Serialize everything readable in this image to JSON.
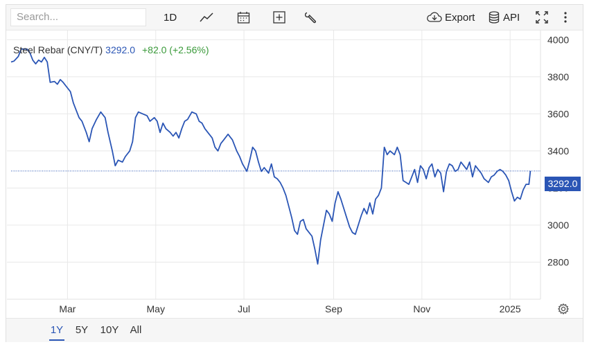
{
  "toolbar": {
    "search_placeholder": "Search...",
    "interval_label": "1D",
    "export_label": "Export",
    "api_label": "API",
    "icons": [
      "line-chart-icon",
      "calendar-icon",
      "plus-box-icon",
      "wrench-icon",
      "cloud-download-icon",
      "database-icon",
      "fullscreen-icon",
      "more-vertical-icon"
    ]
  },
  "legend": {
    "name": "Steel Rebar (CNY/T)",
    "price": "3292.0",
    "change": "+82.0 (+2.56%)"
  },
  "last_price_label": "3292.0",
  "ranges": [
    {
      "label": "1Y",
      "active": true
    },
    {
      "label": "5Y",
      "active": false
    },
    {
      "label": "10Y",
      "active": false
    },
    {
      "label": "All",
      "active": false
    }
  ],
  "colors": {
    "series": "#2a55b5",
    "change_positive": "#3a9a3a",
    "grid": "#e8e8e8"
  },
  "chart_data": {
    "type": "line",
    "title": "",
    "xlabel": "",
    "ylabel": "",
    "ylim": [
      2600,
      4050
    ],
    "y_ticks": [
      2800,
      3000,
      3200,
      3400,
      3600,
      3800,
      4000
    ],
    "x_tick_labels": [
      {
        "label": "Mar",
        "date": "2024-03-01"
      },
      {
        "label": "May",
        "date": "2024-05-01"
      },
      {
        "label": "Jul",
        "date": "2024-07-01"
      },
      {
        "label": "Sep",
        "date": "2024-09-01"
      },
      {
        "label": "Nov",
        "date": "2024-11-01"
      },
      {
        "label": "2025",
        "date": "2025-01-01"
      }
    ],
    "x_range": [
      "2024-01-22",
      "2025-01-22"
    ],
    "grid": true,
    "last_value": 3292.0,
    "series": [
      {
        "name": "Steel Rebar (CNY/T)",
        "points": [
          [
            "2024-01-22",
            3880
          ],
          [
            "2024-01-24",
            3885
          ],
          [
            "2024-01-27",
            3910
          ],
          [
            "2024-01-29",
            3950
          ],
          [
            "2024-02-02",
            3950
          ],
          [
            "2024-02-04",
            3930
          ],
          [
            "2024-02-06",
            3890
          ],
          [
            "2024-02-08",
            3870
          ],
          [
            "2024-02-10",
            3890
          ],
          [
            "2024-02-12",
            3880
          ],
          [
            "2024-02-14",
            3905
          ],
          [
            "2024-02-16",
            3880
          ],
          [
            "2024-02-18",
            3770
          ],
          [
            "2024-02-21",
            3775
          ],
          [
            "2024-02-23",
            3760
          ],
          [
            "2024-02-25",
            3785
          ],
          [
            "2024-02-27",
            3770
          ],
          [
            "2024-03-01",
            3740
          ],
          [
            "2024-03-03",
            3720
          ],
          [
            "2024-03-05",
            3660
          ],
          [
            "2024-03-07",
            3620
          ],
          [
            "2024-03-09",
            3580
          ],
          [
            "2024-03-11",
            3560
          ],
          [
            "2024-03-14",
            3500
          ],
          [
            "2024-03-16",
            3450
          ],
          [
            "2024-03-18",
            3520
          ],
          [
            "2024-03-21",
            3570
          ],
          [
            "2024-03-24",
            3610
          ],
          [
            "2024-03-27",
            3580
          ],
          [
            "2024-03-29",
            3500
          ],
          [
            "2024-04-01",
            3400
          ],
          [
            "2024-04-03",
            3320
          ],
          [
            "2024-04-05",
            3350
          ],
          [
            "2024-04-08",
            3340
          ],
          [
            "2024-04-10",
            3370
          ],
          [
            "2024-04-13",
            3400
          ],
          [
            "2024-04-15",
            3450
          ],
          [
            "2024-04-17",
            3580
          ],
          [
            "2024-04-19",
            3610
          ],
          [
            "2024-04-22",
            3600
          ],
          [
            "2024-04-25",
            3590
          ],
          [
            "2024-04-27",
            3560
          ],
          [
            "2024-04-30",
            3580
          ],
          [
            "2024-05-02",
            3560
          ],
          [
            "2024-05-04",
            3500
          ],
          [
            "2024-05-06",
            3550
          ],
          [
            "2024-05-08",
            3520
          ],
          [
            "2024-05-11",
            3500
          ],
          [
            "2024-05-13",
            3480
          ],
          [
            "2024-05-15",
            3500
          ],
          [
            "2024-05-17",
            3470
          ],
          [
            "2024-05-19",
            3520
          ],
          [
            "2024-05-21",
            3560
          ],
          [
            "2024-05-23",
            3570
          ],
          [
            "2024-05-26",
            3610
          ],
          [
            "2024-05-29",
            3600
          ],
          [
            "2024-05-31",
            3560
          ],
          [
            "2024-06-02",
            3550
          ],
          [
            "2024-06-04",
            3520
          ],
          [
            "2024-06-06",
            3500
          ],
          [
            "2024-06-09",
            3470
          ],
          [
            "2024-06-11",
            3420
          ],
          [
            "2024-06-13",
            3400
          ],
          [
            "2024-06-15",
            3440
          ],
          [
            "2024-06-17",
            3460
          ],
          [
            "2024-06-20",
            3490
          ],
          [
            "2024-06-23",
            3460
          ],
          [
            "2024-06-26",
            3400
          ],
          [
            "2024-06-28",
            3370
          ],
          [
            "2024-06-30",
            3330
          ],
          [
            "2024-07-03",
            3290
          ],
          [
            "2024-07-05",
            3350
          ],
          [
            "2024-07-07",
            3420
          ],
          [
            "2024-07-09",
            3400
          ],
          [
            "2024-07-11",
            3340
          ],
          [
            "2024-07-13",
            3290
          ],
          [
            "2024-07-15",
            3310
          ],
          [
            "2024-07-18",
            3280
          ],
          [
            "2024-07-20",
            3330
          ],
          [
            "2024-07-22",
            3260
          ],
          [
            "2024-07-24",
            3250
          ],
          [
            "2024-07-26",
            3230
          ],
          [
            "2024-07-28",
            3200
          ],
          [
            "2024-07-30",
            3160
          ],
          [
            "2024-08-01",
            3100
          ],
          [
            "2024-08-03",
            3040
          ],
          [
            "2024-08-05",
            2970
          ],
          [
            "2024-08-07",
            2950
          ],
          [
            "2024-08-09",
            3020
          ],
          [
            "2024-08-11",
            3030
          ],
          [
            "2024-08-13",
            2980
          ],
          [
            "2024-08-15",
            2960
          ],
          [
            "2024-08-17",
            2940
          ],
          [
            "2024-08-19",
            2870
          ],
          [
            "2024-08-21",
            2790
          ],
          [
            "2024-08-23",
            2920
          ],
          [
            "2024-08-25",
            3000
          ],
          [
            "2024-08-27",
            3080
          ],
          [
            "2024-08-29",
            3060
          ],
          [
            "2024-08-31",
            3020
          ],
          [
            "2024-09-02",
            3120
          ],
          [
            "2024-09-04",
            3180
          ],
          [
            "2024-09-06",
            3140
          ],
          [
            "2024-09-08",
            3090
          ],
          [
            "2024-09-10",
            3040
          ],
          [
            "2024-09-12",
            2990
          ],
          [
            "2024-09-14",
            2960
          ],
          [
            "2024-09-16",
            2950
          ],
          [
            "2024-09-18",
            3000
          ],
          [
            "2024-09-20",
            3050
          ],
          [
            "2024-09-22",
            3090
          ],
          [
            "2024-09-24",
            3060
          ],
          [
            "2024-09-26",
            3120
          ],
          [
            "2024-09-28",
            3060
          ],
          [
            "2024-09-30",
            3140
          ],
          [
            "2024-10-02",
            3160
          ],
          [
            "2024-10-04",
            3200
          ],
          [
            "2024-10-06",
            3420
          ],
          [
            "2024-10-08",
            3380
          ],
          [
            "2024-10-10",
            3400
          ],
          [
            "2024-10-13",
            3380
          ],
          [
            "2024-10-15",
            3420
          ],
          [
            "2024-10-17",
            3380
          ],
          [
            "2024-10-19",
            3240
          ],
          [
            "2024-10-21",
            3230
          ],
          [
            "2024-10-23",
            3220
          ],
          [
            "2024-10-25",
            3260
          ],
          [
            "2024-10-27",
            3300
          ],
          [
            "2024-10-29",
            3230
          ],
          [
            "2024-10-31",
            3320
          ],
          [
            "2024-11-02",
            3300
          ],
          [
            "2024-11-04",
            3250
          ],
          [
            "2024-11-06",
            3310
          ],
          [
            "2024-11-08",
            3330
          ],
          [
            "2024-11-10",
            3260
          ],
          [
            "2024-11-12",
            3300
          ],
          [
            "2024-11-14",
            3280
          ],
          [
            "2024-11-16",
            3180
          ],
          [
            "2024-11-18",
            3290
          ],
          [
            "2024-11-20",
            3330
          ],
          [
            "2024-11-22",
            3320
          ],
          [
            "2024-11-24",
            3290
          ],
          [
            "2024-11-26",
            3300
          ],
          [
            "2024-11-28",
            3340
          ],
          [
            "2024-11-30",
            3320
          ],
          [
            "2024-12-02",
            3300
          ],
          [
            "2024-12-04",
            3340
          ],
          [
            "2024-12-06",
            3260
          ],
          [
            "2024-12-08",
            3320
          ],
          [
            "2024-12-10",
            3300
          ],
          [
            "2024-12-12",
            3280
          ],
          [
            "2024-12-14",
            3250
          ],
          [
            "2024-12-17",
            3230
          ],
          [
            "2024-12-19",
            3260
          ],
          [
            "2024-12-21",
            3270
          ],
          [
            "2024-12-23",
            3290
          ],
          [
            "2024-12-25",
            3300
          ],
          [
            "2024-12-27",
            3290
          ],
          [
            "2024-12-29",
            3270
          ],
          [
            "2024-12-31",
            3240
          ],
          [
            "2025-01-02",
            3180
          ],
          [
            "2025-01-04",
            3130
          ],
          [
            "2025-01-06",
            3150
          ],
          [
            "2025-01-08",
            3140
          ],
          [
            "2025-01-10",
            3190
          ],
          [
            "2025-01-12",
            3220
          ],
          [
            "2025-01-14",
            3220
          ],
          [
            "2025-01-15",
            3292
          ]
        ]
      }
    ]
  }
}
